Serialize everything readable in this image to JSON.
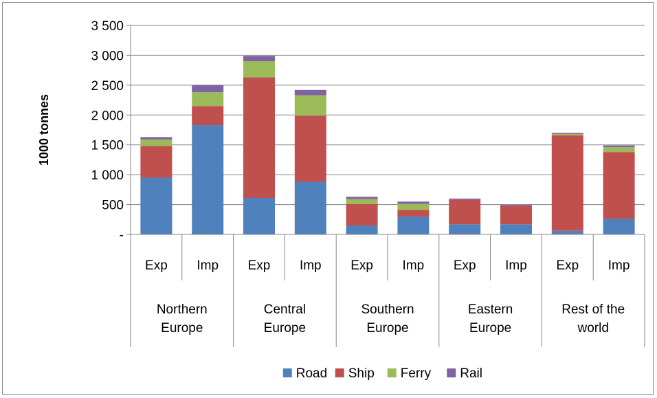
{
  "chart_data": {
    "type": "bar",
    "stacked": true,
    "ylabel": "1000 tonnes",
    "ylim": [
      0,
      3500
    ],
    "yticks": [
      {
        "value": 0,
        "label": "-"
      },
      {
        "value": 500,
        "label": "500"
      },
      {
        "value": 1000,
        "label": "1 000"
      },
      {
        "value": 1500,
        "label": "1 500"
      },
      {
        "value": 2000,
        "label": "2 000"
      },
      {
        "value": 2500,
        "label": "2 500"
      },
      {
        "value": 3000,
        "label": "3 000"
      },
      {
        "value": 3500,
        "label": "3 500"
      }
    ],
    "grid": true,
    "legend_position": "bottom",
    "groups": [
      {
        "lines": [
          "Northern",
          "Europe"
        ],
        "categories": [
          "Exp",
          "Imp"
        ]
      },
      {
        "lines": [
          "Central",
          "Europe"
        ],
        "categories": [
          "Exp",
          "Imp"
        ]
      },
      {
        "lines": [
          "Southern",
          "Europe"
        ],
        "categories": [
          "Exp",
          "Imp"
        ]
      },
      {
        "lines": [
          "Eastern",
          "Europe"
        ],
        "categories": [
          "Exp",
          "Imp"
        ]
      },
      {
        "lines": [
          "Rest of the",
          "world"
        ],
        "categories": [
          "Exp",
          "Imp"
        ]
      }
    ],
    "series": [
      {
        "name": "Road",
        "color": "#4f81bd",
        "values": [
          950,
          1830,
          610,
          880,
          150,
          300,
          170,
          170,
          60,
          260
        ]
      },
      {
        "name": "Ship",
        "color": "#c0504d",
        "values": [
          530,
          320,
          2020,
          1110,
          360,
          110,
          410,
          310,
          1600,
          1120
        ]
      },
      {
        "name": "Ferry",
        "color": "#9bbb59",
        "values": [
          110,
          230,
          270,
          340,
          80,
          100,
          0,
          0,
          20,
          80
        ]
      },
      {
        "name": "Rail",
        "color": "#8064a2",
        "values": [
          40,
          120,
          90,
          90,
          40,
          40,
          20,
          20,
          20,
          30
        ]
      }
    ]
  }
}
